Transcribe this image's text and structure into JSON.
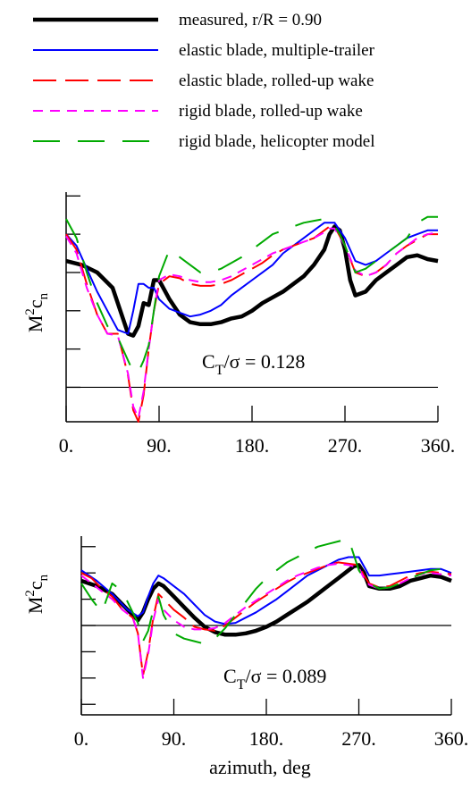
{
  "chart_data": [
    {
      "type": "line",
      "annotation": {
        "lhs": "C",
        "lhs_sub": "T",
        "rhs": "/σ = 0.128"
      },
      "ylabel": {
        "base": "M",
        "sup": "2",
        "var": "c",
        "sub": "n"
      },
      "xlim": [
        0,
        360
      ],
      "ylim": [
        -0.9,
        5.1
      ],
      "x_tick_labels": [
        "0.",
        "90.",
        "180.",
        "270.",
        "360."
      ],
      "x_ticks": [
        0,
        90,
        180,
        270,
        360
      ],
      "y_ticks": [
        0,
        1,
        2,
        3,
        4,
        5
      ],
      "zero_line": 0,
      "grid": false,
      "series": [
        {
          "name": "measured, r/R = 0.90",
          "x": [
            0,
            15,
            30,
            45,
            60,
            65,
            70,
            75,
            80,
            85,
            90,
            100,
            110,
            120,
            130,
            140,
            150,
            160,
            170,
            180,
            190,
            200,
            210,
            220,
            230,
            240,
            250,
            255,
            260,
            265,
            270,
            275,
            280,
            290,
            300,
            310,
            320,
            330,
            340,
            350,
            360
          ],
          "y": [
            3.3,
            3.2,
            3.0,
            2.6,
            1.4,
            1.35,
            1.6,
            2.2,
            2.15,
            2.8,
            2.8,
            2.3,
            1.9,
            1.7,
            1.65,
            1.65,
            1.7,
            1.8,
            1.85,
            2.0,
            2.2,
            2.35,
            2.5,
            2.7,
            2.9,
            3.2,
            3.6,
            4.0,
            4.2,
            4.1,
            3.6,
            2.8,
            2.4,
            2.5,
            2.8,
            3.0,
            3.2,
            3.4,
            3.45,
            3.35,
            3.3
          ]
        },
        {
          "name": "elastic blade, multiple-trailer",
          "x": [
            0,
            10,
            20,
            30,
            40,
            50,
            60,
            65,
            70,
            75,
            80,
            85,
            90,
            100,
            110,
            120,
            130,
            140,
            150,
            160,
            170,
            180,
            190,
            200,
            210,
            220,
            230,
            240,
            250,
            255,
            260,
            265,
            270,
            280,
            290,
            300,
            310,
            320,
            330,
            340,
            350,
            360
          ],
          "y": [
            4.0,
            3.7,
            3.1,
            2.5,
            2.0,
            1.5,
            1.4,
            2.0,
            2.7,
            2.7,
            2.6,
            2.6,
            2.3,
            2.05,
            1.95,
            1.85,
            1.9,
            2.0,
            2.15,
            2.4,
            2.6,
            2.8,
            3.0,
            3.2,
            3.5,
            3.7,
            3.9,
            4.1,
            4.3,
            4.3,
            4.3,
            4.1,
            3.9,
            3.3,
            3.2,
            3.3,
            3.5,
            3.7,
            3.9,
            4.0,
            4.1,
            4.1
          ]
        },
        {
          "name": "elastic blade, rolled-up wake",
          "x": [
            0,
            10,
            20,
            30,
            40,
            50,
            60,
            65,
            70,
            75,
            80,
            85,
            90,
            100,
            110,
            120,
            130,
            140,
            150,
            160,
            170,
            180,
            190,
            200,
            210,
            220,
            230,
            240,
            250,
            255,
            260,
            270,
            280,
            290,
            300,
            310,
            320,
            330,
            340,
            350,
            360
          ],
          "y": [
            4.0,
            3.6,
            2.7,
            1.9,
            1.4,
            1.4,
            0.3,
            -0.6,
            -0.9,
            -0.2,
            1.0,
            2.0,
            2.7,
            2.9,
            2.85,
            2.7,
            2.65,
            2.65,
            2.7,
            2.8,
            2.95,
            3.1,
            3.25,
            3.45,
            3.6,
            3.7,
            3.8,
            3.9,
            4.1,
            4.2,
            4.2,
            3.7,
            3.0,
            2.9,
            3.0,
            3.2,
            3.5,
            3.7,
            3.85,
            4.0,
            4.0
          ]
        },
        {
          "name": "rigid blade, rolled-up wake",
          "x": [
            0,
            10,
            20,
            30,
            40,
            50,
            60,
            65,
            70,
            75,
            80,
            85,
            90,
            100,
            110,
            120,
            130,
            140,
            150,
            160,
            170,
            180,
            190,
            200,
            210,
            220,
            230,
            240,
            250,
            255,
            260,
            270,
            280,
            290,
            300,
            310,
            320,
            330,
            340,
            350,
            360
          ],
          "y": [
            3.95,
            3.5,
            2.6,
            1.9,
            1.4,
            1.35,
            0.35,
            -0.5,
            -0.8,
            -0.1,
            1.0,
            2.0,
            2.8,
            2.95,
            2.9,
            2.8,
            2.75,
            2.75,
            2.8,
            2.9,
            3.05,
            3.2,
            3.35,
            3.5,
            3.6,
            3.7,
            3.8,
            3.9,
            4.05,
            4.15,
            4.15,
            3.7,
            3.05,
            2.9,
            3.0,
            3.2,
            3.5,
            3.7,
            3.9,
            4.0,
            4.05
          ]
        },
        {
          "name": "rigid blade, helicopter model",
          "x": [
            0,
            10,
            20,
            30,
            40,
            50,
            60,
            65,
            70,
            75,
            80,
            85,
            90,
            100,
            110,
            120,
            130,
            140,
            150,
            160,
            170,
            180,
            190,
            200,
            210,
            220,
            230,
            240,
            250,
            255,
            260,
            265,
            270,
            280,
            290,
            300,
            310,
            320,
            330,
            340,
            350,
            360
          ],
          "y": [
            4.4,
            3.9,
            3.0,
            2.2,
            1.6,
            1.3,
            0.7,
            0.4,
            0.4,
            0.7,
            1.1,
            2.0,
            2.9,
            3.6,
            3.4,
            3.2,
            3.0,
            3.0,
            3.1,
            3.25,
            3.4,
            3.6,
            3.8,
            4.0,
            4.1,
            4.2,
            4.3,
            4.35,
            4.4,
            4.3,
            4.2,
            4.0,
            3.7,
            3.0,
            3.1,
            3.3,
            3.5,
            3.7,
            3.9,
            4.3,
            4.45,
            4.45
          ]
        }
      ]
    },
    {
      "type": "line",
      "annotation": {
        "lhs": "C",
        "lhs_sub": "T",
        "rhs": "/σ = 0.089"
      },
      "ylabel": {
        "base": "M",
        "sup": "2",
        "var": "c",
        "sub": "n"
      },
      "xlabel": "azimuth, deg",
      "xlim": [
        0,
        360
      ],
      "ylim": [
        -3.4,
        3.4
      ],
      "x_tick_labels": [
        "0.",
        "90.",
        "180.",
        "270.",
        "360."
      ],
      "x_ticks": [
        0,
        90,
        180,
        270,
        360
      ],
      "y_ticks": [
        -3,
        -2,
        -1,
        0,
        1,
        2,
        3
      ],
      "zero_line": 0,
      "grid": false,
      "series": [
        {
          "name": "measured, r/R = 0.90",
          "x": [
            0,
            15,
            30,
            45,
            55,
            60,
            65,
            70,
            75,
            80,
            90,
            100,
            110,
            120,
            130,
            140,
            150,
            160,
            170,
            180,
            190,
            200,
            210,
            220,
            230,
            240,
            250,
            260,
            265,
            270,
            275,
            280,
            290,
            300,
            310,
            320,
            330,
            340,
            350,
            360
          ],
          "y": [
            1.7,
            1.5,
            1.2,
            0.6,
            0.2,
            0.5,
            1.0,
            1.4,
            1.6,
            1.5,
            1.1,
            0.7,
            0.3,
            -0.05,
            -0.25,
            -0.35,
            -0.35,
            -0.3,
            -0.2,
            -0.05,
            0.15,
            0.4,
            0.65,
            0.9,
            1.2,
            1.5,
            1.8,
            2.1,
            2.25,
            2.3,
            2.0,
            1.5,
            1.4,
            1.4,
            1.5,
            1.7,
            1.8,
            1.9,
            1.85,
            1.7
          ]
        },
        {
          "name": "elastic blade, multiple-trailer",
          "x": [
            0,
            15,
            30,
            45,
            55,
            60,
            65,
            70,
            75,
            80,
            90,
            100,
            110,
            120,
            130,
            140,
            150,
            160,
            170,
            180,
            190,
            200,
            210,
            220,
            230,
            240,
            250,
            260,
            270,
            280,
            290,
            300,
            310,
            320,
            330,
            340,
            350,
            360
          ],
          "y": [
            2.1,
            1.7,
            1.2,
            0.6,
            0.35,
            0.5,
            1.1,
            1.6,
            1.9,
            1.8,
            1.5,
            1.2,
            0.8,
            0.4,
            0.15,
            0.05,
            0.1,
            0.3,
            0.5,
            0.75,
            1.0,
            1.3,
            1.6,
            1.9,
            2.1,
            2.3,
            2.5,
            2.6,
            2.6,
            1.9,
            1.9,
            1.95,
            2.0,
            2.05,
            2.1,
            2.15,
            2.15,
            2.0
          ]
        },
        {
          "name": "elastic blade, rolled-up wake",
          "x": [
            0,
            10,
            20,
            30,
            40,
            50,
            55,
            60,
            65,
            70,
            75,
            80,
            90,
            100,
            110,
            120,
            130,
            140,
            150,
            160,
            170,
            180,
            190,
            200,
            210,
            220,
            230,
            240,
            250,
            260,
            270,
            275,
            280,
            290,
            300,
            310,
            320,
            330,
            340,
            350,
            360
          ],
          "y": [
            2.0,
            1.8,
            1.4,
            1.1,
            0.6,
            0.3,
            -0.3,
            -1.9,
            -1.0,
            0.3,
            1.2,
            1.0,
            0.6,
            0.3,
            -0.05,
            -0.15,
            -0.2,
            0.0,
            0.3,
            0.6,
            0.9,
            1.15,
            1.4,
            1.65,
            1.85,
            2.0,
            2.15,
            2.3,
            2.4,
            2.35,
            2.3,
            1.9,
            1.6,
            1.45,
            1.5,
            1.7,
            1.9,
            2.0,
            2.05,
            2.0,
            1.95
          ]
        },
        {
          "name": "rigid blade, rolled-up wake",
          "x": [
            0,
            10,
            20,
            30,
            40,
            50,
            55,
            60,
            65,
            70,
            75,
            80,
            90,
            100,
            110,
            120,
            130,
            140,
            150,
            160,
            170,
            180,
            190,
            200,
            210,
            220,
            230,
            240,
            250,
            260,
            270,
            275,
            280,
            290,
            300,
            310,
            320,
            330,
            340,
            350,
            360
          ],
          "y": [
            1.9,
            1.6,
            1.3,
            1.0,
            0.6,
            0.3,
            -0.3,
            -2.0,
            -1.1,
            0.2,
            1.0,
            0.6,
            0.2,
            -0.05,
            -0.15,
            -0.15,
            -0.1,
            0.1,
            0.4,
            0.7,
            0.95,
            1.2,
            1.45,
            1.7,
            1.9,
            2.05,
            2.2,
            2.3,
            2.35,
            2.3,
            2.2,
            1.8,
            1.55,
            1.4,
            1.45,
            1.6,
            1.8,
            1.95,
            2.0,
            1.95,
            1.9
          ]
        },
        {
          "name": "rigid blade, helicopter model",
          "x": [
            0,
            10,
            20,
            30,
            40,
            50,
            55,
            60,
            65,
            70,
            75,
            80,
            90,
            100,
            110,
            120,
            130,
            140,
            150,
            160,
            170,
            180,
            190,
            200,
            210,
            220,
            230,
            240,
            250,
            260,
            270,
            275,
            280,
            290,
            300,
            310,
            320,
            330,
            340,
            350,
            360
          ],
          "y": [
            1.6,
            1.0,
            0.5,
            1.6,
            1.3,
            0.5,
            0.1,
            -0.6,
            -0.2,
            0.6,
            1.1,
            0.4,
            -0.3,
            -0.5,
            -0.6,
            -0.7,
            -0.5,
            -0.1,
            0.4,
            0.9,
            1.4,
            1.8,
            2.1,
            2.4,
            2.6,
            2.8,
            3.0,
            3.1,
            3.2,
            3.3,
            2.1,
            1.8,
            1.6,
            1.4,
            1.45,
            1.6,
            1.8,
            1.95,
            2.1,
            2.15,
            2.1
          ]
        }
      ]
    }
  ],
  "legend": {
    "placement": "top",
    "entries": [
      {
        "label": "measured, r/R = 0.90",
        "color": "#000000",
        "style": "solid-thick"
      },
      {
        "label": "elastic blade, multiple-trailer",
        "color": "#0000ff",
        "style": "solid"
      },
      {
        "label": "elastic blade, rolled-up wake",
        "color": "#ff0000",
        "style": "long-dash"
      },
      {
        "label": "rigid blade, rolled-up wake",
        "color": "#ff00ff",
        "style": "dash"
      },
      {
        "label": "rigid blade, helicopter model",
        "color": "#00aa00",
        "style": "long-dash-gap"
      }
    ]
  }
}
